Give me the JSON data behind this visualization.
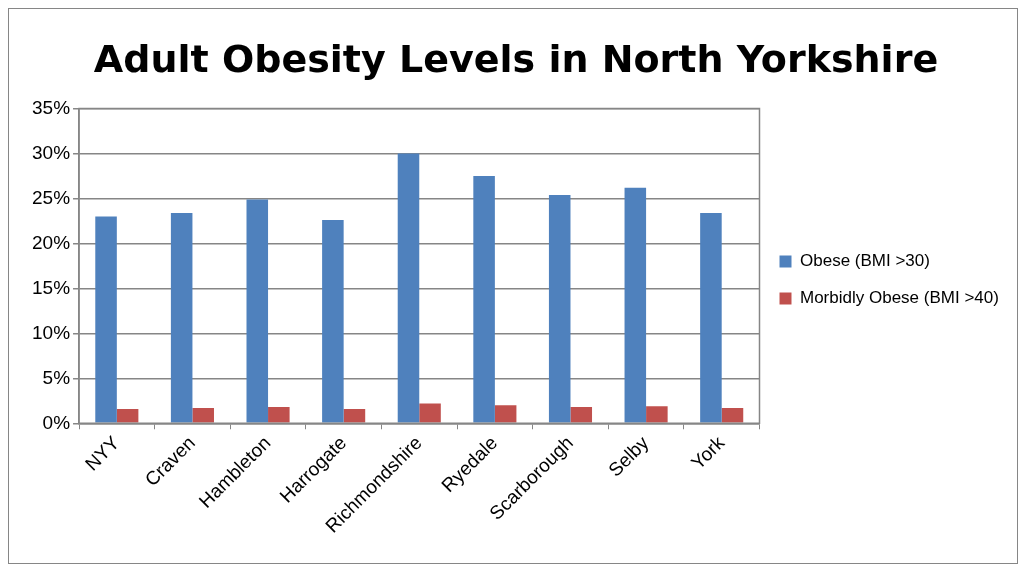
{
  "chart_data": {
    "type": "bar",
    "title": "Adult Obesity Levels in North Yorkshire",
    "categories": [
      "NYY",
      "Craven",
      "Hambleton",
      "Harrogate",
      "Richmondshire",
      "Ryedale",
      "Scarborough",
      "Selby",
      "York"
    ],
    "series": [
      {
        "name": "Obese (BMI >30)",
        "color": "#4f81bd",
        "values": [
          23.0,
          23.4,
          24.9,
          22.6,
          30.0,
          27.5,
          25.4,
          26.2,
          23.4
        ]
      },
      {
        "name": "Morbidly Obese (BMI >40)",
        "color": "#c0504d",
        "values": [
          1.6,
          1.7,
          1.8,
          1.6,
          2.2,
          2.0,
          1.8,
          1.9,
          1.7
        ]
      }
    ],
    "ylim": [
      0,
      35
    ],
    "yticks": [
      {
        "value": 0,
        "label": "0%"
      },
      {
        "value": 5,
        "label": "5%"
      },
      {
        "value": 10,
        "label": "10%"
      },
      {
        "value": 15,
        "label": "15%"
      },
      {
        "value": 20,
        "label": "20%"
      },
      {
        "value": 25,
        "label": "25%"
      },
      {
        "value": 30,
        "label": "30%"
      },
      {
        "value": 35,
        "label": "35%"
      }
    ],
    "grid": "y",
    "legend": "right"
  }
}
